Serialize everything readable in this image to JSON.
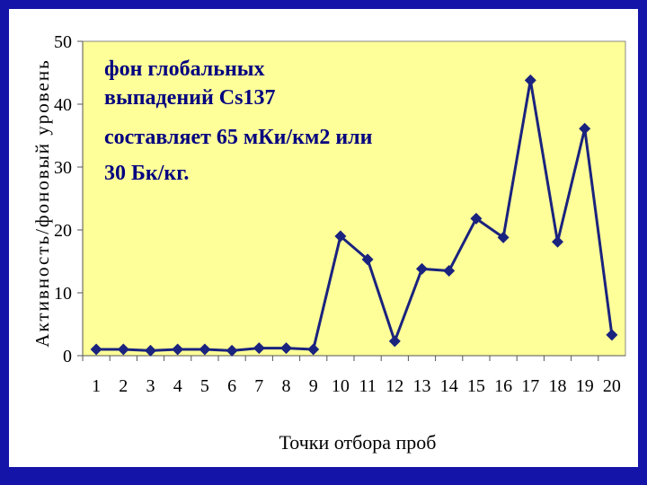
{
  "chart_data": {
    "type": "line",
    "title": "",
    "xlabel": "Точки отбора проб",
    "ylabel": "Активность/фоновый уровень",
    "x": [
      "1",
      "2",
      "3",
      "4",
      "5",
      "6",
      "7",
      "8",
      "9",
      "10",
      "11",
      "12",
      "13",
      "14",
      "15",
      "16",
      "17",
      "18",
      "19",
      "20"
    ],
    "series": [
      {
        "values": [
          1.0,
          1.0,
          0.8,
          1.0,
          1.0,
          0.8,
          1.2,
          1.2,
          1.0,
          19.0,
          15.3,
          2.3,
          13.8,
          13.5,
          21.8,
          18.8,
          43.8,
          18.1,
          36.1,
          3.3
        ]
      }
    ],
    "yticks": [
      "0",
      "10",
      "20",
      "30",
      "40",
      "50"
    ],
    "ylim": [
      0,
      50
    ],
    "grid": false,
    "annotation": {
      "lines": [
        "фон глобальных",
        "выпадений Cs137",
        "составляет 65 мКи/км2 или",
        "30 Бк/кг."
      ]
    },
    "colors": {
      "plot_background": "#ffff99",
      "series": "#1a237e",
      "frame": "#1414a8"
    }
  }
}
